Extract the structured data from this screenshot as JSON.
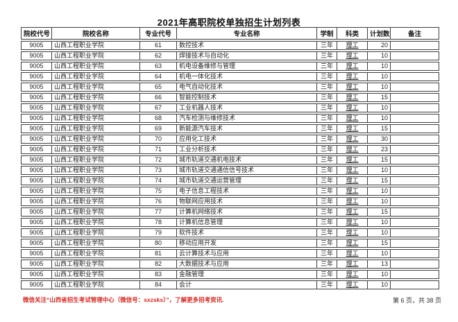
{
  "page": {
    "title": "2021年高职院校单独招生计划列表"
  },
  "table": {
    "headers": [
      "院校代号",
      "院校名称",
      "专业代号",
      "专业名称",
      "学制",
      "科类",
      "计划数",
      "备注"
    ],
    "rows": [
      [
        "9005",
        "山西工程职业学院",
        "61",
        "数控技术",
        "三年",
        "理工",
        "20",
        ""
      ],
      [
        "9005",
        "山西工程职业学院",
        "62",
        "焊接技术与自动化",
        "三年",
        "理工",
        "10",
        ""
      ],
      [
        "9005",
        "山西工程职业学院",
        "63",
        "机电设备维修与管理",
        "三年",
        "理工",
        "10",
        ""
      ],
      [
        "9005",
        "山西工程职业学院",
        "64",
        "机电一体化技术",
        "三年",
        "理工",
        "10",
        ""
      ],
      [
        "9005",
        "山西工程职业学院",
        "65",
        "电气自动化技术",
        "三年",
        "理工",
        "10",
        ""
      ],
      [
        "9005",
        "山西工程职业学院",
        "66",
        "智能控制技术",
        "三年",
        "理工",
        "15",
        ""
      ],
      [
        "9005",
        "山西工程职业学院",
        "67",
        "工业机器人技术",
        "三年",
        "理工",
        "10",
        ""
      ],
      [
        "9005",
        "山西工程职业学院",
        "68",
        "汽车检测与维修技术",
        "三年",
        "理工",
        "10",
        ""
      ],
      [
        "9005",
        "山西工程职业学院",
        "69",
        "新能源汽车技术",
        "三年",
        "理工",
        "15",
        ""
      ],
      [
        "9005",
        "山西工程职业学院",
        "70",
        "应用化工技术",
        "三年",
        "理工",
        "30",
        ""
      ],
      [
        "9005",
        "山西工程职业学院",
        "71",
        "工业分析技术",
        "三年",
        "理工",
        "23",
        ""
      ],
      [
        "9005",
        "山西工程职业学院",
        "72",
        "城市轨道交通机电技术",
        "三年",
        "理工",
        "15",
        ""
      ],
      [
        "9005",
        "山西工程职业学院",
        "73",
        "城市轨道交通通信信号技术",
        "三年",
        "理工",
        "10",
        ""
      ],
      [
        "9005",
        "山西工程职业学院",
        "74",
        "城市轨道交通运营管理",
        "三年",
        "理工",
        "15",
        ""
      ],
      [
        "9005",
        "山西工程职业学院",
        "75",
        "电子信息工程技术",
        "三年",
        "理工",
        "10",
        ""
      ],
      [
        "9005",
        "山西工程职业学院",
        "76",
        "物联网应用技术",
        "三年",
        "理工",
        "10",
        ""
      ],
      [
        "9005",
        "山西工程职业学院",
        "77",
        "计算机网络技术",
        "三年",
        "理工",
        "15",
        ""
      ],
      [
        "9005",
        "山西工程职业学院",
        "78",
        "计算机信息管理",
        "三年",
        "理工",
        "10",
        ""
      ],
      [
        "9005",
        "山西工程职业学院",
        "79",
        "软件技术",
        "三年",
        "理工",
        "10",
        ""
      ],
      [
        "9005",
        "山西工程职业学院",
        "80",
        "移动应用开发",
        "三年",
        "理工",
        "15",
        ""
      ],
      [
        "9005",
        "山西工程职业学院",
        "81",
        "云计算技术与应用",
        "三年",
        "理工",
        "10",
        ""
      ],
      [
        "9005",
        "山西工程职业学院",
        "82",
        "大数据技术与应用",
        "三年",
        "理工",
        "13",
        ""
      ],
      [
        "9005",
        "山西工程职业学院",
        "83",
        "金融管理",
        "三年",
        "理工",
        "10",
        ""
      ],
      [
        "9005",
        "山西工程职业学院",
        "84",
        "会计",
        "三年",
        "理工",
        "10",
        ""
      ]
    ]
  },
  "footer": {
    "notice": "微信关注“山西省招生考试管理中心（微信号：sxzsks）”，了解更多招考资讯.",
    "page_info": "第 6 页，共 38 页"
  },
  "colors": {
    "notice_red": "#d9251d",
    "table_border": "#3d3d3d"
  }
}
